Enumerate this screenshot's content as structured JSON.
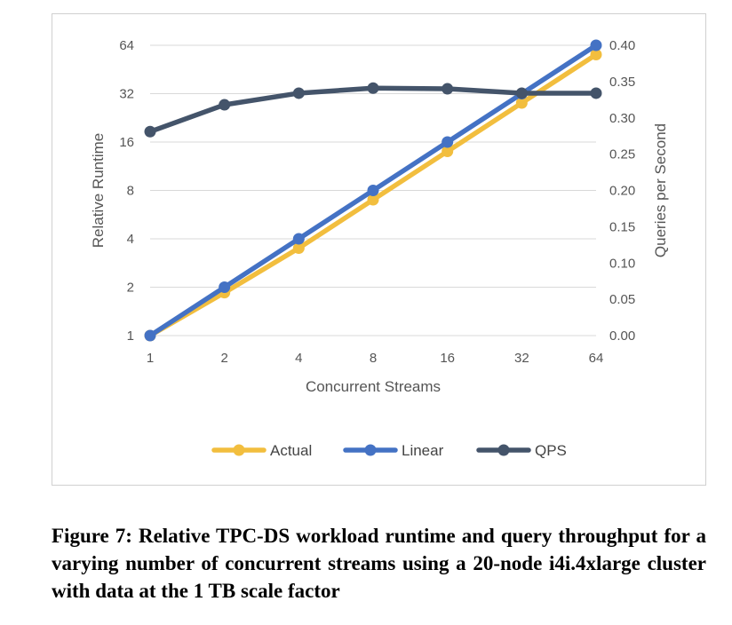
{
  "chart_data": {
    "type": "line",
    "xlabel": "Concurrent Streams",
    "ylabel": "Relative Runtime",
    "y2label": "Queries per Second",
    "x": [
      "1",
      "2",
      "4",
      "8",
      "16",
      "32",
      "64"
    ],
    "y_scale": "log2",
    "y_ticks": [
      "1",
      "2",
      "4",
      "8",
      "16",
      "32",
      "64"
    ],
    "ylim": [
      1,
      64
    ],
    "y2_ticks": [
      "0.00",
      "0.05",
      "0.10",
      "0.15",
      "0.20",
      "0.25",
      "0.30",
      "0.35",
      "0.40"
    ],
    "y2lim": [
      0,
      0.4
    ],
    "grid": true,
    "legend_position": "bottom",
    "series": [
      {
        "name": "Actual",
        "axis": "left",
        "color": "#F2BE3E",
        "values": [
          1,
          1.85,
          3.5,
          7.0,
          14.0,
          28.0,
          56.0
        ]
      },
      {
        "name": "Linear",
        "axis": "left",
        "color": "#4472C4",
        "values": [
          1,
          2,
          4,
          8,
          16,
          32,
          64
        ]
      },
      {
        "name": "QPS",
        "axis": "right",
        "color": "#44546A",
        "values": [
          0.281,
          0.318,
          0.334,
          0.341,
          0.34,
          0.334,
          0.334
        ]
      }
    ]
  },
  "caption": "Figure 7: Relative TPC-DS workload runtime and query throughput for a varying number of concurrent streams using a 20-node i4i.4xlarge cluster with data at the 1 TB scale factor"
}
